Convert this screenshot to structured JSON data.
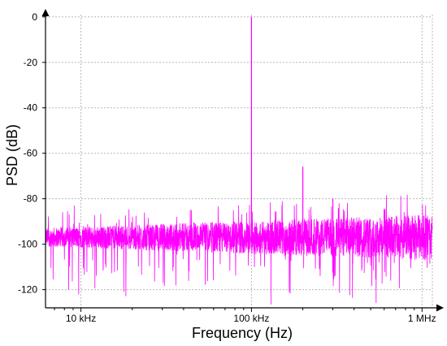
{
  "chart_data": {
    "type": "line",
    "title": "",
    "xlabel": "Frequency (Hz)",
    "ylabel": "PSD (dB)",
    "x_scale": "log",
    "xlim": [
      6200,
      1150000
    ],
    "ylim": [
      -128,
      1
    ],
    "grid": true,
    "x_ticks": [
      {
        "value": 10000,
        "label": "10 kHz"
      },
      {
        "value": 100000,
        "label": "100 kHz"
      },
      {
        "value": 1000000,
        "label": "1 MHz"
      }
    ],
    "y_ticks": [
      {
        "value": 0,
        "label": "0"
      },
      {
        "value": -20,
        "label": "-20"
      },
      {
        "value": -40,
        "label": "-40"
      },
      {
        "value": -60,
        "label": "-60"
      },
      {
        "value": -80,
        "label": "-80"
      },
      {
        "value": -100,
        "label": "-100"
      },
      {
        "value": -120,
        "label": "-120"
      }
    ],
    "series": [
      {
        "color": "#ff00ff",
        "noise_floor_db": -97,
        "x_start": 6200,
        "x_end": 1150000,
        "peaks": [
          {
            "x": 100000,
            "y": 0
          },
          {
            "x": 200000,
            "y": -66
          },
          {
            "x": 300000,
            "y": -80
          }
        ]
      }
    ]
  }
}
